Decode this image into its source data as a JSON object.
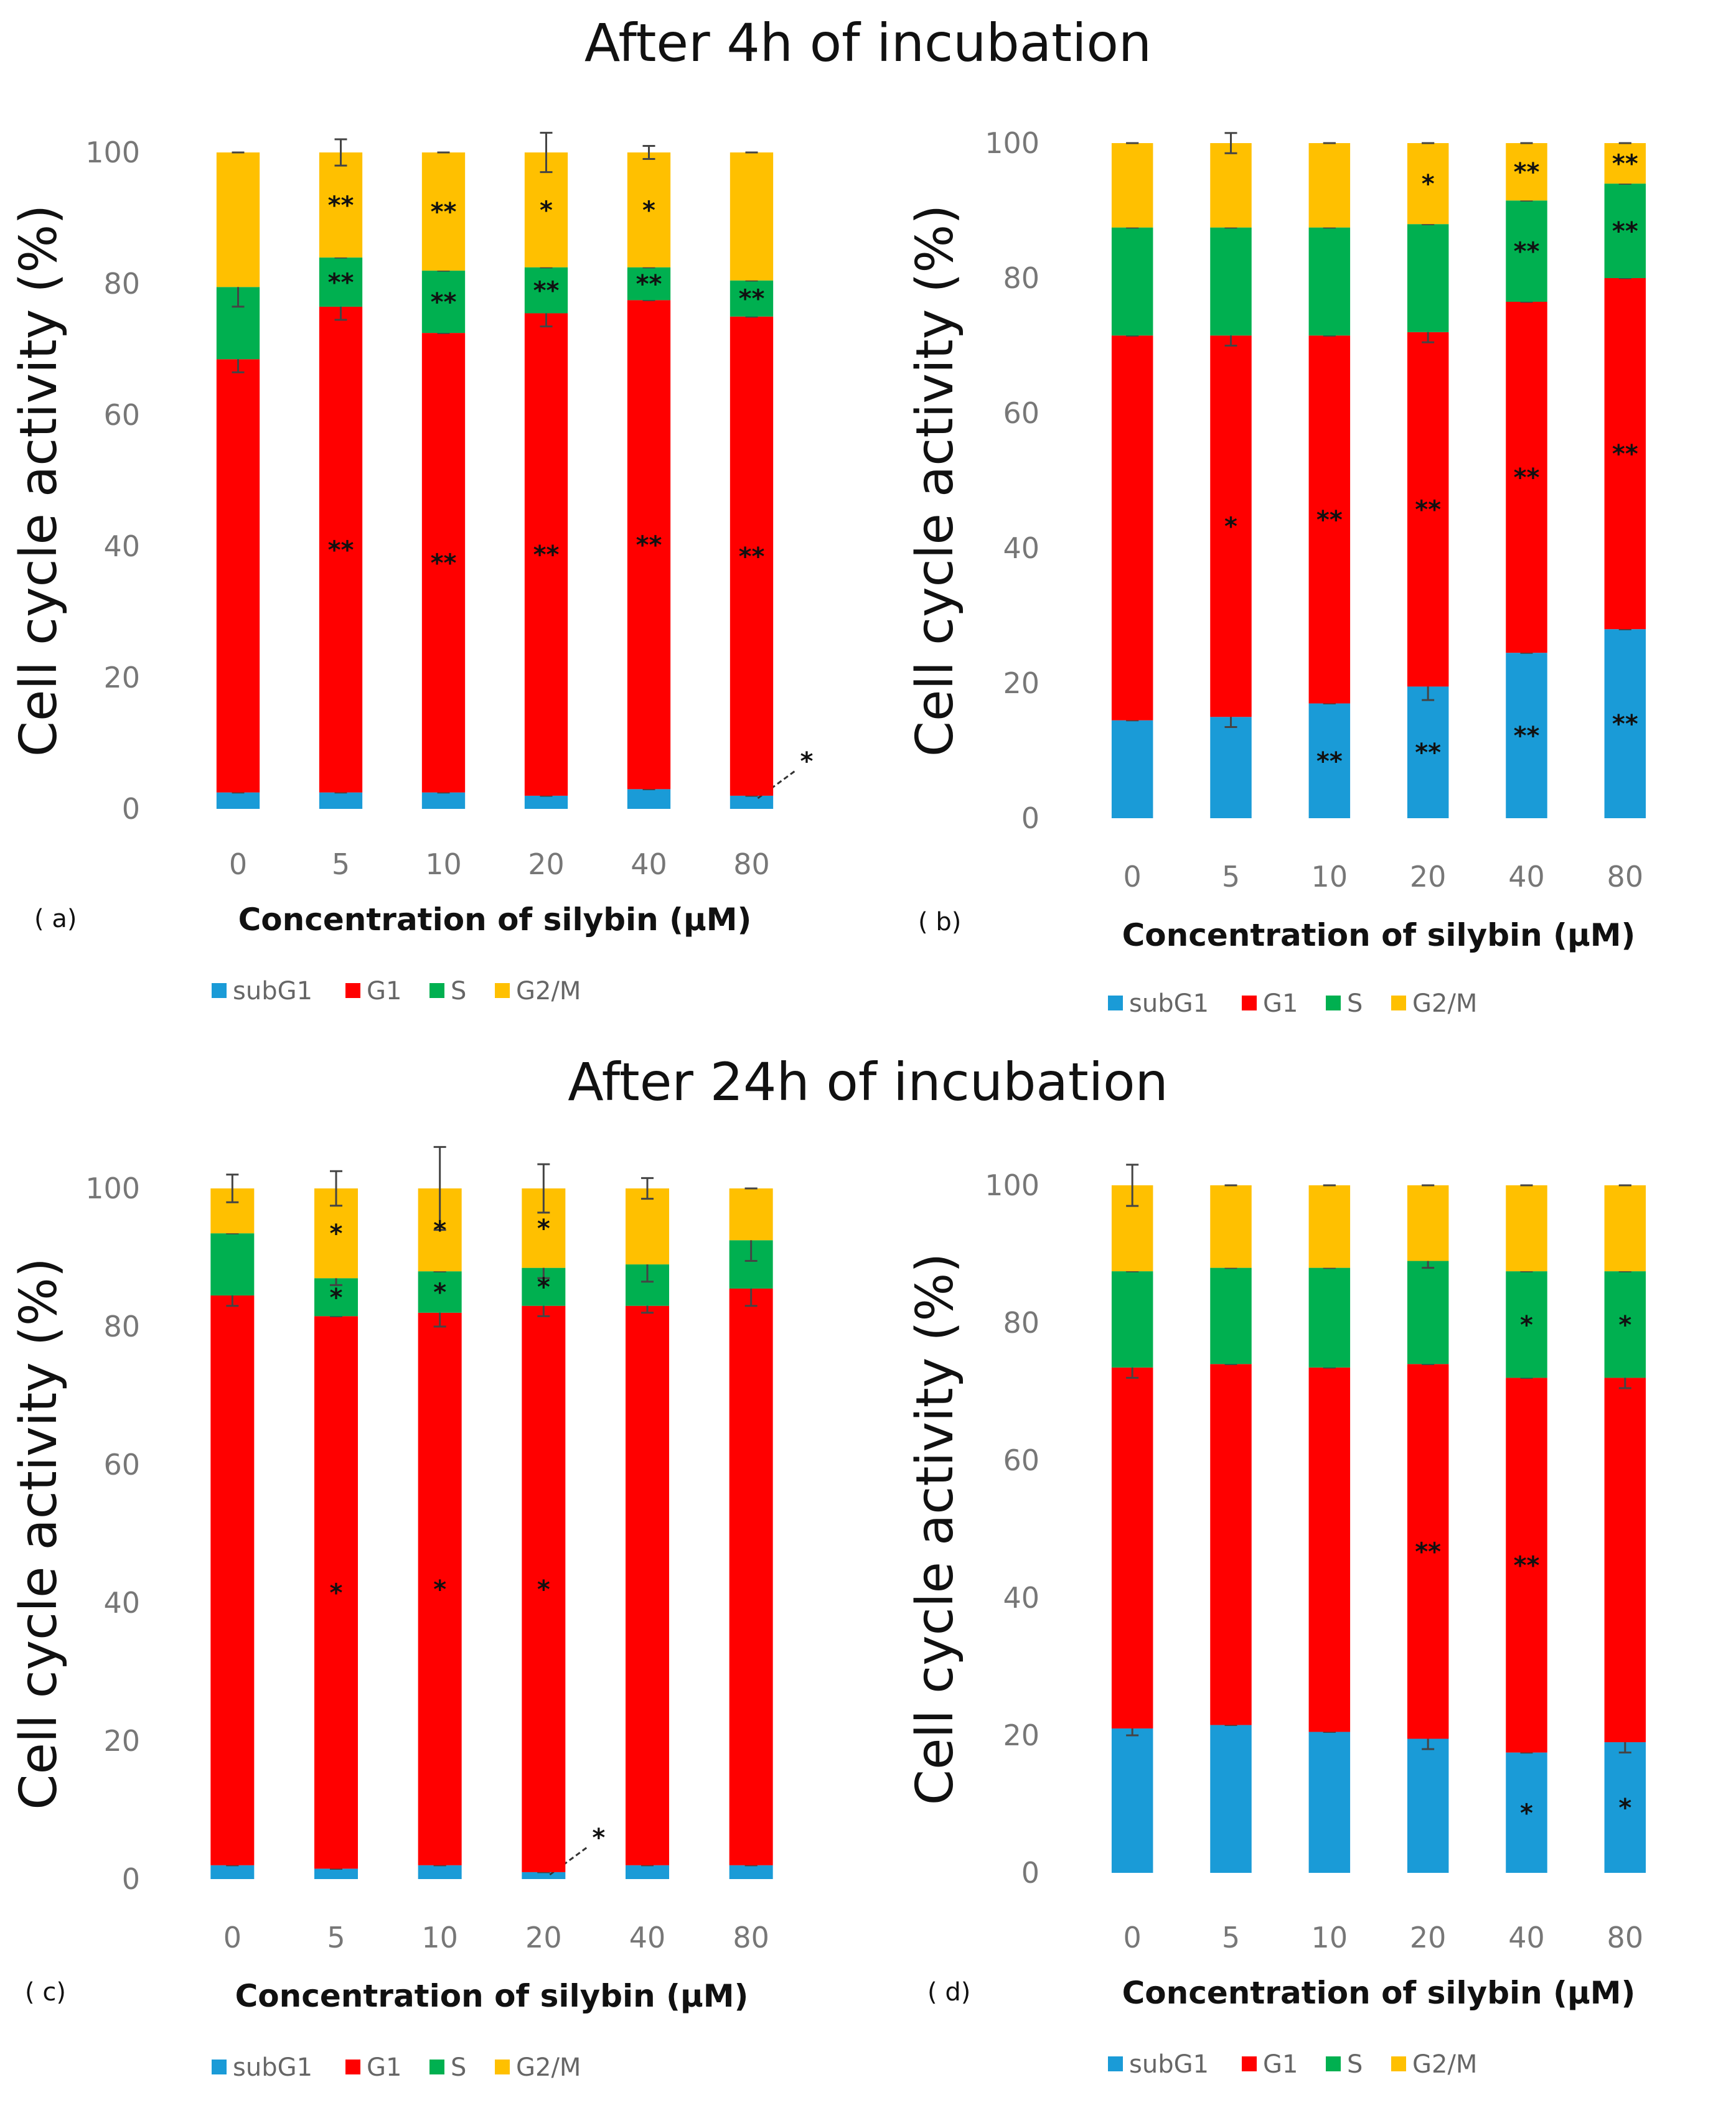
{
  "titles": {
    "top": "After 4h  of incubation",
    "bottom": "After 24h  of incubation"
  },
  "colors": {
    "subG1": "#1a9bd7",
    "G1": "#ff0000",
    "S": "#00b050",
    "G2M": "#ffc000"
  },
  "chart_data": [
    {
      "type": "bar",
      "stacked": true,
      "panel_label": "( a)",
      "title": "",
      "xlabel": "Concentration  of silybin (µM)",
      "ylabel": "Cell cycle activity (%)",
      "ylim": [
        0,
        100
      ],
      "yticks": [
        "0",
        "20",
        "40",
        "60",
        "80",
        "100"
      ],
      "categories": [
        "0",
        "5",
        "10",
        "20",
        "40",
        "80"
      ],
      "legend": [
        "subG1",
        "G1",
        "S",
        "G2/M"
      ],
      "legend_position": "bottom",
      "series": [
        {
          "name": "subG1",
          "values": [
            2.5,
            2.5,
            2.5,
            2,
            3,
            2
          ],
          "errors": [
            0,
            0,
            0,
            0,
            0,
            0
          ],
          "marks": [
            "",
            "",
            "",
            "",
            "",
            "*"
          ]
        },
        {
          "name": "G1",
          "values": [
            66,
            74,
            70,
            73.5,
            74.5,
            73
          ],
          "errors": [
            2,
            2,
            0,
            2,
            0,
            0
          ],
          "marks": [
            "",
            "**",
            "**",
            "**",
            "**",
            "**"
          ]
        },
        {
          "name": "S",
          "values": [
            11,
            7.5,
            9.5,
            7,
            5,
            5.5
          ],
          "errors": [
            3,
            0,
            0,
            0,
            0,
            0
          ],
          "marks": [
            "",
            "**",
            "**",
            "**",
            "**",
            "**"
          ]
        },
        {
          "name": "G2/M",
          "values": [
            20.5,
            16,
            18,
            17.5,
            17.5,
            19.5
          ],
          "errors": [
            0,
            2,
            0,
            3,
            1,
            0
          ],
          "marks": [
            "",
            "**",
            "**",
            "*",
            "*",
            ""
          ]
        }
      ]
    },
    {
      "type": "bar",
      "stacked": true,
      "panel_label": "( b)",
      "title": "",
      "xlabel": "Concentration of silybin (µM)",
      "ylabel": "Cell cycle activity (%)",
      "ylim": [
        0,
        100
      ],
      "yticks": [
        "0",
        "20",
        "40",
        "60",
        "80",
        "100"
      ],
      "categories": [
        "0",
        "5",
        "10",
        "20",
        "40",
        "80"
      ],
      "legend": [
        "subG1",
        "G1",
        "S",
        "G2/M"
      ],
      "legend_position": "bottom",
      "series": [
        {
          "name": "subG1",
          "values": [
            14.5,
            15,
            17,
            19.5,
            24.5,
            28
          ],
          "errors": [
            0,
            1.5,
            0,
            2,
            0,
            0
          ],
          "marks": [
            "",
            "",
            "**",
            "**",
            "**",
            "**"
          ]
        },
        {
          "name": "G1",
          "values": [
            57,
            56.5,
            54.5,
            52.5,
            52,
            52
          ],
          "errors": [
            0,
            1.5,
            0,
            1.5,
            0,
            0
          ],
          "marks": [
            "",
            "*",
            "**",
            "**",
            "**",
            "**"
          ]
        },
        {
          "name": "S",
          "values": [
            16,
            16,
            16,
            16,
            15,
            14
          ],
          "errors": [
            0,
            0,
            0,
            0,
            0,
            0
          ],
          "marks": [
            "",
            "",
            "",
            "",
            "**",
            "**"
          ]
        },
        {
          "name": "G2/M",
          "values": [
            12.5,
            12.5,
            12.5,
            12,
            8.5,
            6
          ],
          "errors": [
            0,
            1.5,
            0,
            0,
            0,
            0
          ],
          "marks": [
            "",
            "",
            "",
            "*",
            "**",
            "**"
          ]
        }
      ]
    },
    {
      "type": "bar",
      "stacked": true,
      "panel_label": "( c)",
      "title": "",
      "xlabel": "Concentration  of  silybin  (µM)",
      "ylabel": "Cell cycle activity (%)",
      "ylim": [
        0,
        100
      ],
      "yticks": [
        "0",
        "20",
        "40",
        "60",
        "80",
        "100"
      ],
      "categories": [
        "0",
        "5",
        "10",
        "20",
        "40",
        "80"
      ],
      "legend": [
        "subG1",
        "G1",
        "S",
        "G2/M"
      ],
      "legend_position": "bottom",
      "series": [
        {
          "name": "subG1",
          "values": [
            2,
            1.5,
            2,
            1,
            2,
            2
          ],
          "errors": [
            0,
            0,
            0,
            0,
            0,
            0
          ],
          "marks": [
            "",
            "",
            "",
            "*",
            "",
            ""
          ]
        },
        {
          "name": "G1",
          "values": [
            82.5,
            80,
            80,
            82,
            81,
            83.5
          ],
          "errors": [
            1.5,
            0,
            2,
            1.5,
            1,
            2.5
          ],
          "marks": [
            "",
            "*",
            "*",
            "*",
            "",
            ""
          ]
        },
        {
          "name": "S",
          "values": [
            9,
            5.5,
            6,
            5.5,
            6,
            7
          ],
          "errors": [
            0,
            1,
            0,
            1.5,
            2.5,
            3
          ],
          "marks": [
            "",
            "*",
            "*",
            "*",
            "",
            ""
          ]
        },
        {
          "name": "G2/M",
          "values": [
            6.5,
            13,
            12,
            11.5,
            11,
            7.5
          ],
          "errors": [
            2,
            2.5,
            6,
            3.5,
            1.5,
            0
          ],
          "marks": [
            "",
            "*",
            "*",
            "*",
            "",
            ""
          ]
        }
      ]
    },
    {
      "type": "bar",
      "stacked": true,
      "panel_label": "( d)",
      "title": "",
      "xlabel": "Concentration of silybin (µM)",
      "ylabel": "Cell cycle activity (%)",
      "ylim": [
        0,
        100
      ],
      "yticks": [
        "0",
        "20",
        "40",
        "60",
        "80",
        "100"
      ],
      "categories": [
        "0",
        "5",
        "10",
        "20",
        "40",
        "80"
      ],
      "legend": [
        "subG1",
        "G1",
        "S",
        "G2/M"
      ],
      "legend_position": "bottom",
      "series": [
        {
          "name": "subG1",
          "values": [
            21,
            21.5,
            20.5,
            19.5,
            17.5,
            19
          ],
          "errors": [
            1,
            0,
            0,
            1.5,
            0,
            1.5
          ],
          "marks": [
            "",
            "",
            "",
            "",
            "*",
            "*"
          ]
        },
        {
          "name": "G1",
          "values": [
            52.5,
            52.5,
            53,
            54.5,
            54.5,
            53
          ],
          "errors": [
            1.5,
            0,
            0,
            0,
            0,
            1.5
          ],
          "marks": [
            "",
            "",
            "",
            "**",
            "**",
            ""
          ]
        },
        {
          "name": "S",
          "values": [
            14,
            14,
            14.5,
            15,
            15.5,
            15.5
          ],
          "errors": [
            0,
            0,
            0,
            1,
            0,
            0
          ],
          "marks": [
            "",
            "",
            "",
            "",
            "*",
            "*"
          ]
        },
        {
          "name": "G2/M",
          "values": [
            12.5,
            12,
            12,
            11,
            12.5,
            12.5
          ],
          "errors": [
            3,
            0,
            0,
            0,
            0,
            0
          ],
          "marks": [
            "",
            "",
            "",
            "",
            "",
            ""
          ]
        }
      ]
    }
  ]
}
